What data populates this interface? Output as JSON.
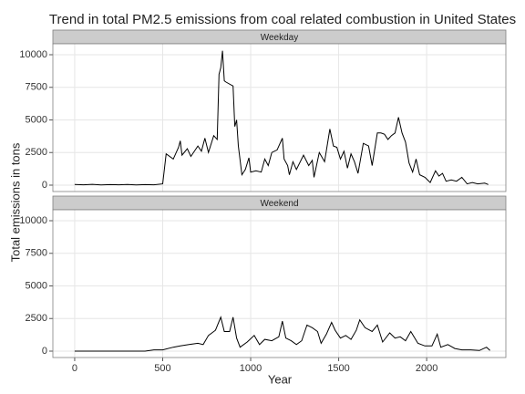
{
  "chart_data": {
    "type": "line",
    "title": "Trend in total PM2.5 emissions from coal related combustion in United States",
    "x_label": "Year",
    "y_label": "Total emissions in tons",
    "xlim": [
      -124,
      2450
    ],
    "xticks": [
      0,
      500,
      1000,
      1500,
      2000
    ],
    "ylim": [
      -490,
      10840
    ],
    "yticks": [
      0,
      2500,
      5000,
      7500,
      10000
    ],
    "grid": true,
    "series": [
      {
        "name": "Weekday",
        "color": "#000000",
        "x": [
          0,
          50,
          100,
          150,
          200,
          250,
          300,
          350,
          400,
          450,
          500,
          520,
          560,
          590,
          600,
          610,
          640,
          660,
          700,
          720,
          740,
          760,
          790,
          810,
          820,
          830,
          840,
          850,
          860,
          900,
          910,
          920,
          930,
          950,
          970,
          990,
          1000,
          1030,
          1060,
          1080,
          1100,
          1120,
          1150,
          1180,
          1190,
          1210,
          1220,
          1240,
          1260,
          1300,
          1330,
          1350,
          1360,
          1390,
          1420,
          1450,
          1470,
          1490,
          1510,
          1530,
          1550,
          1570,
          1590,
          1610,
          1640,
          1670,
          1690,
          1720,
          1740,
          1760,
          1780,
          1800,
          1820,
          1840,
          1860,
          1880,
          1900,
          1920,
          1940,
          1960,
          1990,
          2020,
          2050,
          2070,
          2090,
          2110,
          2140,
          2170,
          2200,
          2230,
          2260,
          2290,
          2330,
          2350
        ],
        "values": [
          50,
          30,
          60,
          20,
          40,
          30,
          50,
          20,
          40,
          30,
          100,
          2400,
          2000,
          2900,
          3400,
          2300,
          2800,
          2200,
          3000,
          2600,
          3600,
          2500,
          3800,
          3500,
          8500,
          9000,
          10300,
          8000,
          7900,
          7600,
          4500,
          5000,
          3000,
          800,
          1200,
          2100,
          1000,
          1100,
          1000,
          2000,
          1500,
          2500,
          2700,
          3600,
          2000,
          1500,
          800,
          1800,
          1200,
          2300,
          1500,
          1900,
          600,
          2500,
          1800,
          4300,
          3000,
          2900,
          2000,
          2600,
          1300,
          2400,
          1800,
          900,
          3200,
          3000,
          1500,
          4000,
          4000,
          3900,
          3500,
          3800,
          4000,
          5200,
          4000,
          3300,
          1700,
          1000,
          2000,
          800,
          600,
          200,
          1100,
          700,
          900,
          300,
          400,
          300,
          600,
          100,
          200,
          100,
          150,
          50
        ]
      },
      {
        "name": "Weekend",
        "color": "#000000",
        "x": [
          0,
          100,
          200,
          300,
          400,
          450,
          500,
          560,
          600,
          650,
          700,
          730,
          760,
          800,
          830,
          850,
          880,
          900,
          920,
          940,
          980,
          1020,
          1050,
          1080,
          1120,
          1160,
          1180,
          1200,
          1230,
          1260,
          1290,
          1320,
          1350,
          1380,
          1400,
          1430,
          1460,
          1480,
          1510,
          1540,
          1570,
          1600,
          1620,
          1650,
          1690,
          1720,
          1750,
          1790,
          1820,
          1850,
          1880,
          1910,
          1950,
          1990,
          2030,
          2060,
          2080,
          2120,
          2160,
          2200,
          2250,
          2300,
          2340,
          2360
        ],
        "values": [
          0,
          0,
          0,
          0,
          0,
          100,
          100,
          300,
          400,
          500,
          600,
          500,
          1200,
          1600,
          2600,
          1500,
          1500,
          2600,
          1000,
          300,
          700,
          1200,
          500,
          900,
          800,
          1100,
          2300,
          1000,
          800,
          500,
          800,
          2000,
          1800,
          1500,
          600,
          1300,
          2200,
          1600,
          1000,
          1200,
          900,
          1600,
          2400,
          1800,
          1500,
          2000,
          700,
          1400,
          1000,
          1100,
          800,
          1500,
          600,
          400,
          400,
          1300,
          300,
          500,
          200,
          100,
          100,
          50,
          300,
          50
        ]
      }
    ]
  }
}
